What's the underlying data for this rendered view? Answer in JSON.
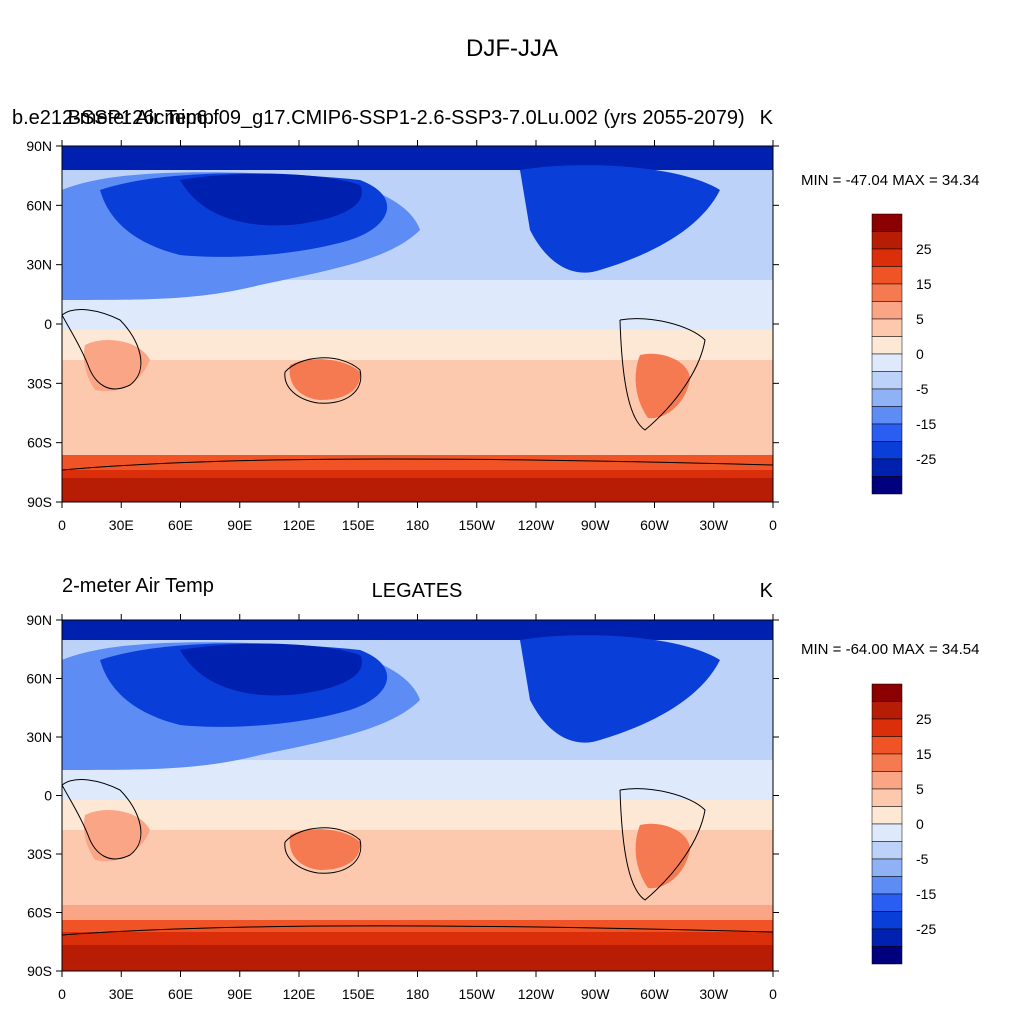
{
  "figure": {
    "title": "DJF-JJA"
  },
  "panels": [
    {
      "id": "top",
      "left_label": "2-meter Air Temp",
      "center_label": "b.e21.BSSP126cmip6.f09_g17.CMIP6-SSP1-2.6-SSP3-7.0Lu.002 (yrs 2055-2079)",
      "right_label": "K",
      "minmax": "MIN = -47.04 MAX =  34.34"
    },
    {
      "id": "bottom",
      "left_label": "2-meter Air Temp",
      "center_label": "LEGATES",
      "right_label": "K",
      "minmax": "MIN = -64.00 MAX =  34.54"
    }
  ],
  "axes": {
    "lat_ticks": [
      "90N",
      "60N",
      "30N",
      "0",
      "30S",
      "60S",
      "90S"
    ],
    "lon_ticks": [
      "0",
      "30E",
      "60E",
      "90E",
      "120E",
      "150E",
      "180",
      "150W",
      "120W",
      "90W",
      "60W",
      "30W",
      "0"
    ]
  },
  "colorbar": {
    "colors": [
      "#00007f",
      "#0020b0",
      "#0a3ed8",
      "#2a5ef2",
      "#5d8cf5",
      "#8fb1f6",
      "#bcd2f8",
      "#deeafc",
      "#fde7d5",
      "#fcc9ae",
      "#fba587",
      "#f67a51",
      "#ef5326",
      "#db2f0b",
      "#b71c05",
      "#8b0000"
    ],
    "labels": [
      "25",
      "15",
      "5",
      "0",
      "-5",
      "-15",
      "-25"
    ]
  },
  "field_colors": {
    "polar_north": "#0020b0",
    "cold_deep": "#0a3ed8",
    "cold": "#5d8cf5",
    "cool": "#bcd2f8",
    "tropics_light": "#deeafc",
    "neutral_warm": "#fde7d5",
    "warm": "#fcc9ae",
    "warmer": "#fba587",
    "hot": "#f67a51",
    "south_hot": "#ef5326",
    "south_hotter": "#db2f0b",
    "south_hottest": "#b71c05"
  }
}
